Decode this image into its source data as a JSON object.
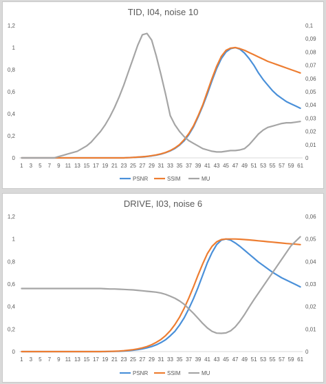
{
  "chart_data": [
    {
      "type": "line",
      "title": "TID, I04, noise 10",
      "x": [
        1,
        2,
        3,
        4,
        5,
        6,
        7,
        8,
        9,
        10,
        11,
        12,
        13,
        14,
        15,
        16,
        17,
        18,
        19,
        20,
        21,
        22,
        23,
        24,
        25,
        26,
        27,
        28,
        29,
        30,
        31,
        32,
        33,
        34,
        35,
        36,
        37,
        38,
        39,
        40,
        41,
        42,
        43,
        44,
        45,
        46,
        47,
        48,
        49,
        50,
        51,
        52,
        53,
        54,
        55,
        56,
        57,
        58,
        59,
        60,
        61
      ],
      "x_tick_labels": [
        "1",
        "3",
        "5",
        "7",
        "9",
        "11",
        "13",
        "15",
        "17",
        "19",
        "21",
        "23",
        "25",
        "27",
        "29",
        "31",
        "33",
        "35",
        "37",
        "39",
        "41",
        "43",
        "45",
        "47",
        "49",
        "51",
        "53",
        "55",
        "57",
        "59",
        "61"
      ],
      "ylim": [
        0,
        1.2
      ],
      "y_ticks": [
        "0",
        "0,2",
        "0,4",
        "0,6",
        "0,8",
        "1",
        "1,2"
      ],
      "y2lim": [
        0,
        0.1
      ],
      "y2_ticks": [
        "0",
        "0,01",
        "0,02",
        "0,03",
        "0,04",
        "0,05",
        "0,06",
        "0,07",
        "0,08",
        "0,09",
        "0,1"
      ],
      "grid": false,
      "legend_position": "bottom",
      "series": [
        {
          "name": "PSNR",
          "color": "#4a90d9",
          "axis": "left",
          "values": [
            0,
            0,
            0,
            0,
            0,
            0,
            0,
            0,
            0,
            0,
            0,
            0,
            0,
            0,
            0,
            0,
            0,
            0,
            0,
            0,
            0,
            0,
            0,
            0.002,
            0.004,
            0.006,
            0.009,
            0.013,
            0.018,
            0.025,
            0.034,
            0.047,
            0.063,
            0.085,
            0.115,
            0.155,
            0.21,
            0.28,
            0.37,
            0.47,
            0.58,
            0.7,
            0.81,
            0.9,
            0.96,
            0.99,
            1.0,
            0.985,
            0.95,
            0.9,
            0.84,
            0.77,
            0.71,
            0.66,
            0.61,
            0.57,
            0.54,
            0.51,
            0.49,
            0.47,
            0.45
          ]
        },
        {
          "name": "SSIM",
          "color": "#ed7d31",
          "axis": "left",
          "values": [
            0,
            0,
            0,
            0,
            0,
            0,
            0,
            0,
            0,
            0,
            0,
            0,
            0,
            0,
            0,
            0,
            0,
            0,
            0,
            0,
            0,
            0,
            0,
            0.002,
            0.004,
            0.007,
            0.01,
            0.014,
            0.02,
            0.027,
            0.036,
            0.049,
            0.066,
            0.09,
            0.12,
            0.165,
            0.22,
            0.29,
            0.38,
            0.48,
            0.6,
            0.72,
            0.83,
            0.92,
            0.975,
            0.995,
            1.0,
            0.99,
            0.975,
            0.955,
            0.935,
            0.915,
            0.895,
            0.875,
            0.86,
            0.845,
            0.83,
            0.815,
            0.8,
            0.785,
            0.77
          ]
        },
        {
          "name": "MU",
          "color": "#a5a5a5",
          "axis": "right",
          "values": [
            0,
            0,
            0,
            0,
            0,
            0,
            0,
            0,
            0.001,
            0.002,
            0.003,
            0.004,
            0.005,
            0.007,
            0.009,
            0.012,
            0.016,
            0.02,
            0.025,
            0.031,
            0.038,
            0.046,
            0.055,
            0.065,
            0.075,
            0.085,
            0.093,
            0.094,
            0.089,
            0.077,
            0.063,
            0.048,
            0.032,
            0.025,
            0.02,
            0.016,
            0.013,
            0.011,
            0.009,
            0.007,
            0.006,
            0.005,
            0.0045,
            0.0045,
            0.005,
            0.0055,
            0.0055,
            0.006,
            0.007,
            0.01,
            0.014,
            0.018,
            0.021,
            0.023,
            0.024,
            0.025,
            0.026,
            0.0265,
            0.0265,
            0.027,
            0.0275
          ]
        }
      ]
    },
    {
      "type": "line",
      "title": "DRIVE, I03, noise 6",
      "x": [
        1,
        2,
        3,
        4,
        5,
        6,
        7,
        8,
        9,
        10,
        11,
        12,
        13,
        14,
        15,
        16,
        17,
        18,
        19,
        20,
        21,
        22,
        23,
        24,
        25,
        26,
        27,
        28,
        29,
        30,
        31,
        32,
        33,
        34,
        35,
        36,
        37,
        38,
        39,
        40,
        41,
        42,
        43,
        44,
        45,
        46,
        47,
        48,
        49,
        50,
        51,
        52,
        53,
        54,
        55,
        56,
        57,
        58,
        59,
        60,
        61
      ],
      "x_tick_labels": [
        "1",
        "3",
        "5",
        "7",
        "9",
        "11",
        "13",
        "15",
        "17",
        "19",
        "21",
        "23",
        "25",
        "27",
        "29",
        "31",
        "33",
        "35",
        "37",
        "39",
        "41",
        "43",
        "45",
        "47",
        "49",
        "51",
        "53",
        "55",
        "57",
        "59",
        "61"
      ],
      "ylim": [
        0,
        1.2
      ],
      "y_ticks": [
        "0",
        "0,2",
        "0,4",
        "0,6",
        "0,8",
        "1",
        "1,2"
      ],
      "y2lim": [
        0,
        0.06
      ],
      "y2_ticks": [
        "0",
        "0,01",
        "0,02",
        "0,03",
        "0,04",
        "0,05",
        "0,06"
      ],
      "grid": false,
      "legend_position": "bottom",
      "series": [
        {
          "name": "PSNR",
          "color": "#4a90d9",
          "axis": "left",
          "values": [
            0,
            0,
            0,
            0,
            0,
            0,
            0,
            0,
            0,
            0,
            0,
            0,
            0,
            0,
            0,
            0,
            0,
            0,
            0,
            0.001,
            0.002,
            0.003,
            0.005,
            0.008,
            0.012,
            0.017,
            0.024,
            0.033,
            0.045,
            0.06,
            0.08,
            0.105,
            0.14,
            0.18,
            0.235,
            0.3,
            0.38,
            0.47,
            0.57,
            0.68,
            0.79,
            0.88,
            0.95,
            0.99,
            1.0,
            0.99,
            0.965,
            0.935,
            0.9,
            0.865,
            0.83,
            0.795,
            0.765,
            0.735,
            0.705,
            0.68,
            0.655,
            0.635,
            0.615,
            0.595,
            0.575
          ]
        },
        {
          "name": "SSIM",
          "color": "#ed7d31",
          "axis": "left",
          "values": [
            0,
            0,
            0,
            0,
            0,
            0,
            0,
            0,
            0,
            0,
            0,
            0,
            0,
            0,
            0,
            0,
            0,
            0,
            0.001,
            0.002,
            0.003,
            0.005,
            0.008,
            0.012,
            0.017,
            0.024,
            0.033,
            0.045,
            0.061,
            0.082,
            0.108,
            0.142,
            0.185,
            0.24,
            0.305,
            0.385,
            0.475,
            0.575,
            0.68,
            0.78,
            0.87,
            0.935,
            0.975,
            0.995,
            1.0,
            1.0,
            1.0,
            0.998,
            0.995,
            0.992,
            0.988,
            0.984,
            0.98,
            0.976,
            0.972,
            0.968,
            0.964,
            0.96,
            0.957,
            0.954,
            0.95
          ]
        },
        {
          "name": "MU",
          "color": "#a5a5a5",
          "axis": "right",
          "values": [
            0.028,
            0.028,
            0.028,
            0.028,
            0.028,
            0.028,
            0.028,
            0.028,
            0.028,
            0.028,
            0.028,
            0.028,
            0.028,
            0.028,
            0.028,
            0.028,
            0.028,
            0.028,
            0.0279,
            0.0278,
            0.0278,
            0.0277,
            0.0276,
            0.0275,
            0.0274,
            0.0272,
            0.027,
            0.0268,
            0.0266,
            0.0264,
            0.026,
            0.0254,
            0.0246,
            0.0237,
            0.0225,
            0.021,
            0.019,
            0.017,
            0.0148,
            0.0125,
            0.0105,
            0.009,
            0.0082,
            0.0081,
            0.0083,
            0.0092,
            0.011,
            0.0135,
            0.0165,
            0.0198,
            0.023,
            0.026,
            0.029,
            0.032,
            0.035,
            0.038,
            0.041,
            0.044,
            0.047,
            0.049,
            0.051
          ]
        }
      ]
    }
  ]
}
